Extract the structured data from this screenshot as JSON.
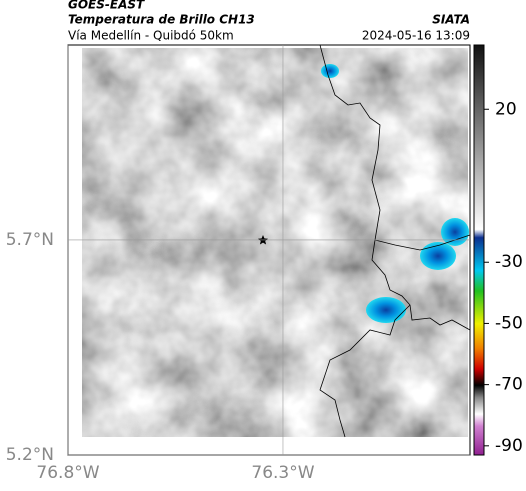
{
  "header": {
    "product": "GOES-EAST",
    "title": "Temperatura de Brillo CH13",
    "source": "SIATA",
    "subtitle": "Vía Medellín - Quibdó 50km",
    "datetime": "2024-05-16 13:09"
  },
  "map": {
    "xlim": [
      -76.8,
      -75.865
    ],
    "ylim": [
      5.2,
      6.153
    ],
    "xticks": [
      {
        "value": -76.8,
        "label": "76.8°W"
      },
      {
        "value": -76.3,
        "label": "76.3°W"
      }
    ],
    "yticks": [
      {
        "value": 5.2,
        "label": "5.2°N"
      },
      {
        "value": 5.7,
        "label": "5.7°N"
      }
    ]
  },
  "colorbar": {
    "clim": [
      -93,
      41
    ],
    "ticks": [
      20,
      -30,
      -50,
      -70,
      -90
    ]
  }
}
